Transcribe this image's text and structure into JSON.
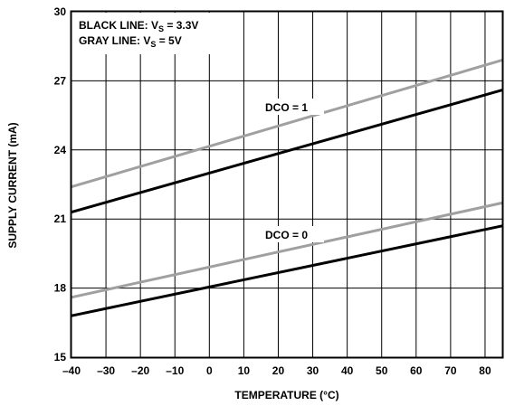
{
  "chart_data": {
    "type": "line",
    "xlabel": "TEMPERATURE (°C)",
    "ylabel": "SUPPLY CURRENT (mA)",
    "xlim": [
      -40,
      85
    ],
    "ylim": [
      15,
      30
    ],
    "x_ticks": [
      "–40",
      "–30",
      "–20",
      "–10",
      "0",
      "10",
      "20",
      "30",
      "40",
      "50",
      "60",
      "70",
      "80"
    ],
    "y_ticks": [
      "15",
      "18",
      "21",
      "24",
      "27",
      "30"
    ],
    "grid": true,
    "legend": {
      "line1_prefix": "BLACK LINE: V",
      "line1_sub": "S",
      "line1_suffix": " = 3.3V",
      "line2_prefix": "GRAY LINE: V",
      "line2_sub": "S",
      "line2_suffix": " = 5V"
    },
    "annotations": {
      "dco1": "DCO = 1",
      "dco0": "DCO = 0"
    },
    "series": [
      {
        "group": "DCO = 1",
        "color": "#a0a0a0",
        "x": [
          -40,
          85
        ],
        "y": [
          22.4,
          27.9
        ]
      },
      {
        "group": "DCO = 1",
        "color": "#000000",
        "x": [
          -40,
          85
        ],
        "y": [
          21.3,
          26.6
        ]
      },
      {
        "group": "DCO = 0",
        "color": "#a0a0a0",
        "x": [
          -40,
          85
        ],
        "y": [
          17.6,
          21.7
        ]
      },
      {
        "group": "DCO = 0",
        "color": "#000000",
        "x": [
          -40,
          85
        ],
        "y": [
          16.8,
          20.7
        ]
      }
    ]
  }
}
